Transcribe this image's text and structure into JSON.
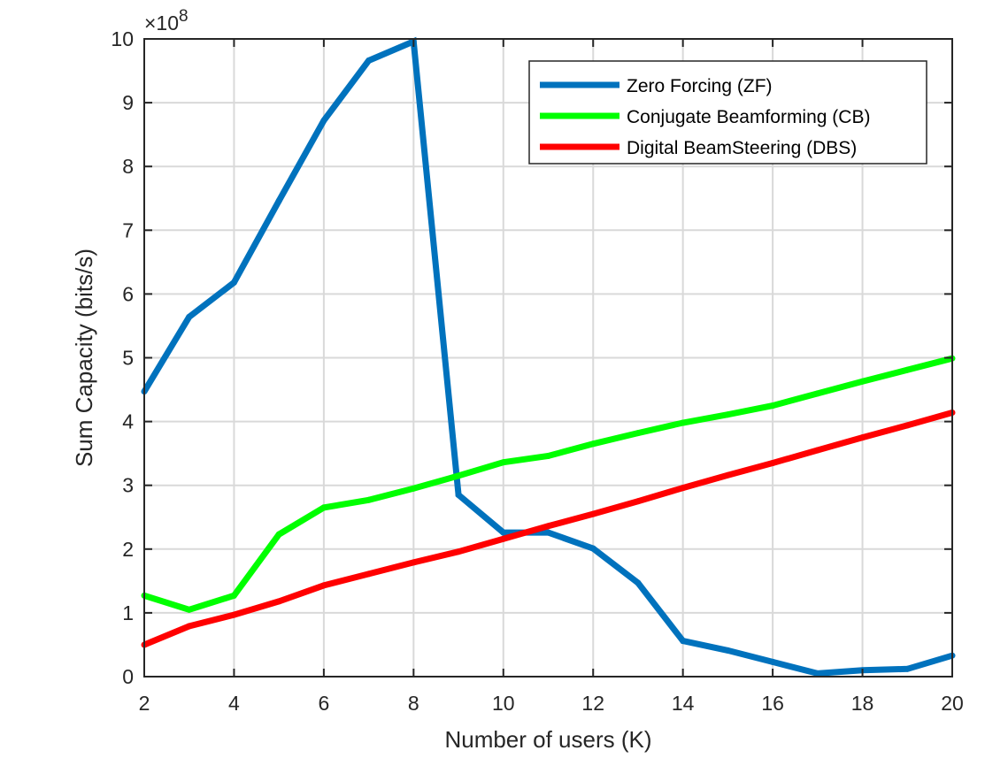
{
  "chart_data": {
    "type": "line",
    "title": "",
    "xlabel": "Number of users (K)",
    "ylabel": "Sum Capacity (bits/s)",
    "y_exponent_base": "×10",
    "y_exponent_power": "8",
    "xlim": [
      2,
      20
    ],
    "ylim": [
      0,
      10
    ],
    "y_scale_factor": 100000000,
    "grid": true,
    "legend_position": "top-right",
    "x_ticks": [
      2,
      4,
      6,
      8,
      10,
      12,
      14,
      16,
      18,
      20
    ],
    "y_ticks": [
      0,
      1,
      2,
      3,
      4,
      5,
      6,
      7,
      8,
      9,
      10
    ],
    "x": [
      2,
      3,
      4,
      5,
      6,
      7,
      8,
      9,
      10,
      11,
      12,
      13,
      14,
      15,
      16,
      17,
      18,
      19,
      20
    ],
    "series": [
      {
        "name": "Zero Forcing (ZF)",
        "color": "#0072BD",
        "values": [
          4.47,
          5.64,
          6.18,
          7.46,
          8.72,
          9.66,
          9.96,
          2.85,
          2.26,
          2.26,
          2.01,
          1.47,
          0.56,
          0.41,
          0.23,
          0.05,
          0.1,
          0.12,
          0.33
        ]
      },
      {
        "name": "Conjugate Beamforming (CB)",
        "color": "#00FF00",
        "values": [
          1.27,
          1.05,
          1.27,
          2.23,
          2.65,
          2.77,
          2.95,
          3.15,
          3.36,
          3.46,
          3.65,
          3.82,
          3.98,
          4.11,
          4.25,
          4.44,
          4.63,
          4.81,
          4.99
        ]
      },
      {
        "name": "Digital BeamSteering (DBS)",
        "color": "#FF0000",
        "values": [
          0.5,
          0.79,
          0.97,
          1.18,
          1.43,
          1.61,
          1.79,
          1.96,
          2.16,
          2.36,
          2.55,
          2.75,
          2.96,
          3.16,
          3.35,
          3.55,
          3.75,
          3.94,
          4.14
        ]
      }
    ]
  }
}
